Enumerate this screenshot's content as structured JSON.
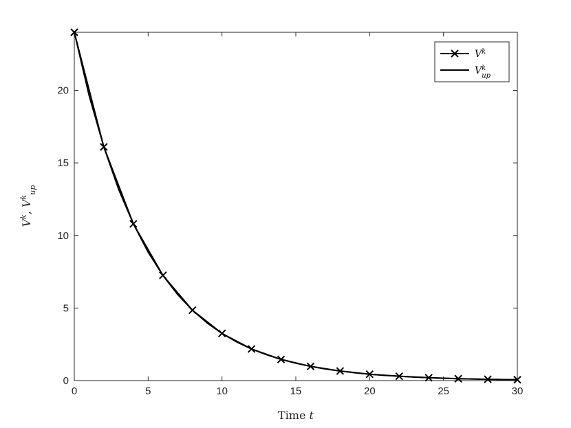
{
  "chart_data": {
    "type": "line",
    "xlabel": "Time t",
    "ylabel": "V^k, V^k_up",
    "xlim": [
      0,
      30
    ],
    "ylim": [
      0,
      24
    ],
    "xticks": [
      0,
      5,
      10,
      15,
      20,
      25,
      30
    ],
    "yticks": [
      0,
      5,
      10,
      15,
      20
    ],
    "grid": false,
    "legend_position": "top-right",
    "series": [
      {
        "name": "V^k",
        "marker": "x",
        "color": "#000000",
        "x": [
          0,
          2,
          4,
          6,
          8,
          10,
          12,
          14,
          16,
          18,
          20,
          22,
          24,
          26,
          28,
          30
        ],
        "values": [
          24.0,
          16.1,
          10.8,
          7.25,
          4.85,
          3.25,
          2.18,
          1.46,
          0.98,
          0.66,
          0.44,
          0.3,
          0.2,
          0.13,
          0.09,
          0.06
        ]
      },
      {
        "name": "V^k_up",
        "marker": "none",
        "color": "#000000",
        "x": [
          0,
          1,
          2,
          3,
          4,
          5,
          6,
          7,
          8,
          9,
          10,
          11,
          12,
          13,
          14,
          15,
          16,
          17,
          18,
          19,
          20,
          21,
          22,
          23,
          24,
          25,
          26,
          27,
          28,
          29,
          30
        ],
        "values": [
          24.0,
          19.65,
          16.1,
          13.18,
          10.8,
          8.85,
          7.25,
          5.93,
          4.85,
          3.97,
          3.25,
          2.66,
          2.18,
          1.79,
          1.46,
          1.2,
          0.98,
          0.8,
          0.66,
          0.54,
          0.44,
          0.36,
          0.3,
          0.24,
          0.2,
          0.16,
          0.13,
          0.11,
          0.09,
          0.07,
          0.06
        ]
      }
    ]
  }
}
